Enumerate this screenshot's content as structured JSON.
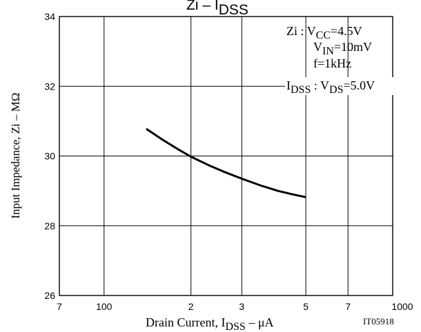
{
  "chart_data": {
    "type": "line",
    "title": {
      "main": "Zi  –  I",
      "sub": "DSS"
    },
    "xlabel": {
      "prefix": "Drain Current, I",
      "sub": "DSS",
      "suffix": "  –  μA"
    },
    "ylabel": "Input Impedance, Zi  –  MΩ",
    "xscale": "log",
    "xlim": [
      70,
      1000
    ],
    "ylim": [
      26,
      34
    ],
    "x_ticks": [
      {
        "value": 70,
        "label": "7"
      },
      {
        "value": 100,
        "label": "100"
      },
      {
        "value": 200,
        "label": "2"
      },
      {
        "value": 300,
        "label": "3"
      },
      {
        "value": 500,
        "label": "5"
      },
      {
        "value": 700,
        "label": "7"
      },
      {
        "value": 1000,
        "label": "1000"
      }
    ],
    "y_ticks": [
      {
        "value": 26,
        "label": "26"
      },
      {
        "value": 28,
        "label": "28"
      },
      {
        "value": 30,
        "label": "30"
      },
      {
        "value": 32,
        "label": "32"
      },
      {
        "value": 34,
        "label": "34"
      }
    ],
    "grid": true,
    "series": [
      {
        "x": [
          140,
          160,
          180,
          200,
          230,
          260,
          300,
          350,
          400,
          450,
          500
        ],
        "y": [
          30.78,
          30.46,
          30.2,
          29.98,
          29.74,
          29.55,
          29.35,
          29.15,
          29.0,
          28.9,
          28.82
        ]
      }
    ],
    "conditions": {
      "zi_prefix": "Zi : V",
      "zi_sub": "CC",
      "zi_value": "=4.5V",
      "vin_prefix": "V",
      "vin_sub": "IN",
      "vin_value": "=10mV",
      "freq": "f=1kHz",
      "idss_prefix": "I",
      "idss_sub": "DSS",
      "idss_mid": " : V",
      "vds_sub": "DS",
      "vds_value": "=5.0V"
    },
    "code": "IT05918"
  }
}
